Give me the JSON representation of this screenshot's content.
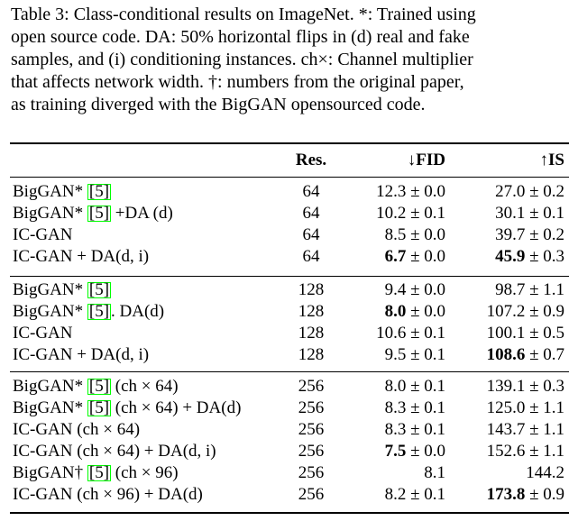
{
  "caption": {
    "line1": "Table 3: Class-conditional results on ImageNet. *: Trained using",
    "line2": "open source code. DA: 50% horizontal flips in (d) real and fake",
    "line3": "samples, and (i) conditioning instances. ch×: Channel multiplier",
    "line4": "that affects network width. †: numbers from the original paper,",
    "line5": "as training diverged with the BigGAN opensourced code."
  },
  "header": {
    "res": "Res.",
    "fid": "↓FID",
    "is": "↑IS"
  },
  "rows": [
    {
      "method_pre": "BigGAN* ",
      "cite": "[5]",
      "method_post": "",
      "res": "64",
      "fid": "12.3 ± 0.0",
      "is": "27.0 ± 0.2"
    },
    {
      "method_pre": "BigGAN* ",
      "cite": "[5]",
      "method_post": " +DA (d)",
      "res": "64",
      "fid": "10.2 ± 0.1",
      "is": "30.1 ± 0.1"
    },
    {
      "method_pre": "IC-GAN",
      "cite": "",
      "method_post": "",
      "res": "64",
      "fid": "8.5 ± 0.0",
      "is": "39.7 ± 0.2"
    },
    {
      "method_pre": "IC-GAN + DA(d, i)",
      "cite": "",
      "method_post": "",
      "res": "64",
      "fid_bold": "6.7",
      "fid_rest": " ± 0.0",
      "is_bold": "45.9",
      "is_rest": " ± 0.3"
    },
    {
      "method_pre": "BigGAN* ",
      "cite": "[5]",
      "method_post": "",
      "res": "128",
      "fid": "9.4 ± 0.0",
      "is": "98.7 ± 1.1"
    },
    {
      "method_pre": "BigGAN* ",
      "cite": "[5]",
      "method_post": ". DA(d)",
      "res": "128",
      "fid_bold": "8.0",
      "fid_rest": " ± 0.0",
      "is": "107.2 ± 0.9"
    },
    {
      "method_pre": "IC-GAN",
      "cite": "",
      "method_post": "",
      "res": "128",
      "fid": "10.6 ± 0.1",
      "is": "100.1 ± 0.5"
    },
    {
      "method_pre": "IC-GAN + DA(d, i)",
      "cite": "",
      "method_post": "",
      "res": "128",
      "fid": "9.5 ± 0.1",
      "is_bold": "108.6",
      "is_rest": " ± 0.7"
    },
    {
      "method_pre": "BigGAN* ",
      "cite": "[5]",
      "method_post": " (ch × 64)",
      "res": "256",
      "fid": "8.0 ± 0.1",
      "is": "139.1 ± 0.3"
    },
    {
      "method_pre": "BigGAN* ",
      "cite": "[5]",
      "method_post": " (ch × 64) + DA(d)",
      "res": "256",
      "fid": "8.3 ± 0.1",
      "is": "125.0 ± 1.1"
    },
    {
      "method_pre": "IC-GAN (ch × 64)",
      "cite": "",
      "method_post": "",
      "res": "256",
      "fid": "8.3 ± 0.1",
      "is": "143.7 ± 1.1"
    },
    {
      "method_pre": "IC-GAN (ch × 64) + DA(d, i)",
      "cite": "",
      "method_post": "",
      "res": "256",
      "fid_bold": "7.5",
      "fid_rest": " ± 0.0",
      "is": "152.6 ± 1.1"
    },
    {
      "method_pre": "BigGAN† ",
      "cite": "[5]",
      "method_post": " (ch × 96)",
      "res": "256",
      "fid": "8.1",
      "is": "144.2"
    },
    {
      "method_pre": "IC-GAN (ch × 96) + DA(d)",
      "cite": "",
      "method_post": "",
      "res": "256",
      "fid": "8.2 ± 0.1",
      "is_bold": "173.8",
      "is_rest": " ± 0.9"
    }
  ],
  "colors": {
    "cite_box": "#00ff00",
    "text": "#000000"
  }
}
